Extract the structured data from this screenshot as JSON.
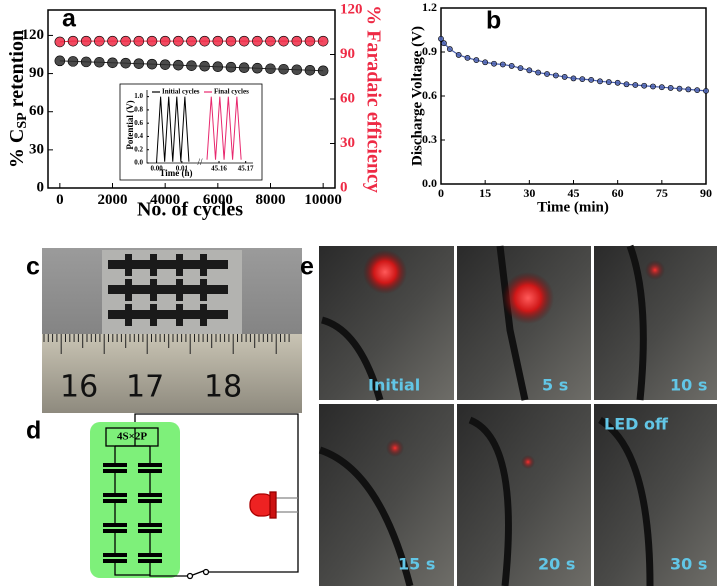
{
  "chart_data": [
    {
      "type": "line",
      "markers": true,
      "xlabel": "No. of cycles",
      "ylabel_parts": [
        "% C",
        "SP",
        " retention"
      ],
      "y2label": "% Faradaic efficiency",
      "x": [
        0,
        500,
        1000,
        1500,
        2000,
        2500,
        3000,
        3500,
        4000,
        4500,
        5000,
        5500,
        6000,
        6500,
        7000,
        7500,
        8000,
        8500,
        9000,
        9500,
        10000
      ],
      "xlim": [
        -450,
        10450
      ],
      "xticks": [
        0,
        2000,
        4000,
        6000,
        8000,
        10000
      ],
      "ylim": [
        0,
        140
      ],
      "yticks": [
        0,
        30,
        60,
        90,
        120
      ],
      "y2lim": [
        0,
        120
      ],
      "y2ticks": [
        0,
        30,
        60,
        90,
        120
      ],
      "series": [
        {
          "color": "#2b2b2b",
          "values": [
            100,
            99.6,
            99.2,
            98.9,
            98.5,
            98.2,
            97.8,
            97.4,
            97.0,
            96.6,
            96.2,
            95.8,
            95.4,
            95.0,
            94.6,
            94.2,
            93.8,
            93.4,
            93.0,
            92.6,
            92.2
          ]
        },
        {
          "color": "#ee2a45",
          "axis": "y2",
          "values": [
            98.5,
            99,
            99,
            99,
            99,
            99,
            99,
            99,
            99,
            99,
            99,
            99,
            99,
            99,
            99,
            99,
            99,
            99,
            99,
            99,
            99
          ]
        }
      ]
    },
    {
      "type": "line",
      "markers": false,
      "xlabel": "Time (h)",
      "ylabel": "Potential (V)",
      "ylim": [
        0,
        1.1
      ],
      "yticks": [
        {
          "value": 0,
          "label": "0.0"
        },
        0.2,
        0.4,
        0.6,
        0.8,
        {
          "value": 1,
          "label": "1.0"
        }
      ],
      "series": [
        {
          "name": "Initial cycles",
          "color": "#000000",
          "x": [
            0,
            0.0016,
            0.0032,
            0.0048,
            0.0064,
            0.008,
            0.0096,
            0.0112,
            0.0128
          ],
          "values": [
            0.02,
            1,
            0.02,
            1,
            0.02,
            1,
            0.02,
            1,
            0.02
          ],
          "xlim": [
            -0.003,
            0.016
          ],
          "xticks": [
            {
              "value": 0,
              "label": "0.00"
            },
            0.01
          ]
        },
        {
          "name": "Final cycles",
          "color": "#e8286e",
          "x": [
            45.1555,
            45.1571,
            45.1587,
            45.1603,
            45.1619,
            45.1635,
            45.1651,
            45.1667,
            45.1683
          ],
          "values": [
            0.05,
            1,
            0.05,
            1,
            0.05,
            1,
            0.05,
            1,
            0.05
          ],
          "xlim": [
            45.154,
            45.172
          ],
          "xticks": [
            45.16,
            45.17
          ]
        }
      ]
    },
    {
      "type": "line",
      "markers": true,
      "xlabel": "Time (min)",
      "ylabel": "Discharge Voltage (V)",
      "x": [
        0,
        1,
        3,
        6,
        9,
        12,
        15,
        18,
        21,
        24,
        27,
        30,
        33,
        36,
        39,
        42,
        45,
        48,
        51,
        54,
        57,
        60,
        63,
        66,
        69,
        72,
        75,
        78,
        81,
        84,
        87,
        90
      ],
      "xlim": [
        0,
        90
      ],
      "xticks": [
        0,
        15,
        30,
        45,
        60,
        75,
        90
      ],
      "ylim": [
        0,
        1.2
      ],
      "yticks": [
        {
          "value": 0,
          "label": "0.0"
        },
        0.3,
        0.6,
        0.9,
        1.2
      ],
      "series": [
        {
          "color": "#4a60b0",
          "values": [
            0.99,
            0.96,
            0.92,
            0.88,
            0.86,
            0.845,
            0.83,
            0.82,
            0.815,
            0.805,
            0.79,
            0.775,
            0.76,
            0.75,
            0.74,
            0.73,
            0.72,
            0.715,
            0.71,
            0.7,
            0.695,
            0.69,
            0.68,
            0.675,
            0.67,
            0.665,
            0.66,
            0.655,
            0.65,
            0.645,
            0.64,
            0.635
          ]
        }
      ]
    }
  ],
  "panel_labels": [
    "a",
    "b",
    "c",
    "d",
    "e"
  ],
  "photo_c": {
    "ruler_labels": [
      "16",
      "17",
      "18"
    ]
  },
  "diagram_d": {
    "label": "4S×2P"
  },
  "photos_e": {
    "captions": [
      "Initial",
      "5 s",
      "10 s",
      "15 s",
      "20 s",
      "30 s"
    ],
    "note": "LED off"
  }
}
